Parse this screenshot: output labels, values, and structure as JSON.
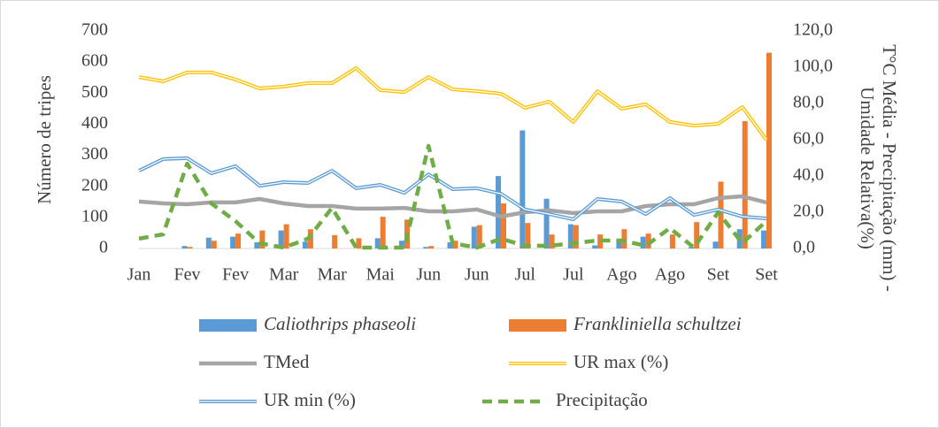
{
  "chart_data": {
    "type": "combo",
    "ylabel": "Número de tripes",
    "y2label": [
      "T°C Média - Precipitação (mm) -",
      "Umidade Relativa(%)"
    ],
    "categories": [
      "Jan",
      null,
      "Fev",
      null,
      "Fev",
      null,
      "Mar",
      null,
      "Mar",
      null,
      "Mai",
      null,
      "Jun",
      null,
      "Jun",
      null,
      "Jul",
      null,
      "Jul",
      null,
      "Ago",
      null,
      "Ago",
      null,
      "Set",
      null,
      "Set"
    ],
    "ylim": [
      0,
      700
    ],
    "yticks": [
      0,
      100,
      200,
      300,
      400,
      500,
      600,
      700
    ],
    "y2lim": [
      0,
      120
    ],
    "y2ticks": [
      {
        "value": 0,
        "label": "0,0"
      },
      {
        "value": 20,
        "label": "20,0"
      },
      {
        "value": 40,
        "label": "40,0"
      },
      {
        "value": 60,
        "label": "60,0"
      },
      {
        "value": 80,
        "label": "80,0"
      },
      {
        "value": 100,
        "label": "100,0"
      },
      {
        "value": 120,
        "label": "120,0"
      }
    ],
    "grid": false,
    "series": [
      {
        "name": "Caliothrips phaseoli",
        "type": "bar",
        "color": "#5b9bd5",
        "values": [
          0,
          0,
          8,
          35,
          38,
          20,
          58,
          22,
          0,
          0,
          33,
          25,
          5,
          20,
          70,
          233,
          380,
          160,
          78,
          10,
          30,
          38,
          0,
          5,
          22,
          62,
          58
        ]
      },
      {
        "name": "Frankliniella schultzei",
        "type": "bar",
        "color": "#ed7d31",
        "values": [
          0,
          0,
          5,
          25,
          48,
          58,
          78,
          62,
          43,
          33,
          102,
          93,
          8,
          25,
          75,
          145,
          82,
          45,
          75,
          45,
          62,
          48,
          45,
          85,
          215,
          410,
          630
        ]
      },
      {
        "name": "TMed",
        "type": "line",
        "style": "solid",
        "axis": "y2",
        "color": "#a5a5a5",
        "values": [
          25.9,
          24.9,
          24.4,
          25.4,
          25.4,
          27.3,
          24.9,
          23.4,
          23.4,
          22.0,
          22.0,
          22.4,
          20.5,
          20.5,
          21.5,
          17.6,
          20.0,
          21.0,
          19.5,
          20.5,
          20.5,
          23.4,
          24.4,
          24.4,
          27.8,
          28.8,
          25.4
        ]
      },
      {
        "name": "UR max (%)",
        "type": "line",
        "style": "double",
        "axis": "y2",
        "color": "#ffc000",
        "values": [
          94.6,
          92.2,
          97.1,
          97.1,
          93.2,
          88.3,
          89.3,
          91.2,
          91.2,
          99.5,
          87.3,
          86.3,
          94.6,
          87.8,
          86.8,
          85.4,
          77.6,
          81.0,
          69.8,
          86.8,
          77.1,
          79.5,
          69.8,
          67.8,
          68.8,
          78.0,
          60.0
        ]
      },
      {
        "name": "UR min (%)",
        "type": "line",
        "style": "double",
        "axis": "y2",
        "color": "#5b9bd5",
        "values": [
          42.9,
          49.3,
          49.8,
          41.5,
          45.4,
          34.6,
          36.6,
          36.1,
          42.9,
          33.2,
          35.1,
          30.7,
          40.9,
          32.7,
          33.2,
          30.2,
          21.5,
          19.0,
          16.1,
          27.3,
          25.9,
          19.0,
          27.8,
          18.5,
          21.5,
          17.6,
          16.6
        ]
      },
      {
        "name": "Precipitação",
        "type": "line",
        "style": "dashed",
        "axis": "y2",
        "color": "#70ad47",
        "values": [
          5.4,
          7.8,
          46.8,
          24.9,
          15.1,
          2.9,
          0.5,
          5.4,
          22.4,
          0.5,
          0.5,
          0.5,
          56.6,
          2.9,
          0.5,
          5.4,
          1.5,
          1.5,
          2.9,
          4.4,
          4.4,
          1.5,
          11.2,
          0.5,
          20.0,
          2.9,
          15.1
        ]
      }
    ]
  }
}
